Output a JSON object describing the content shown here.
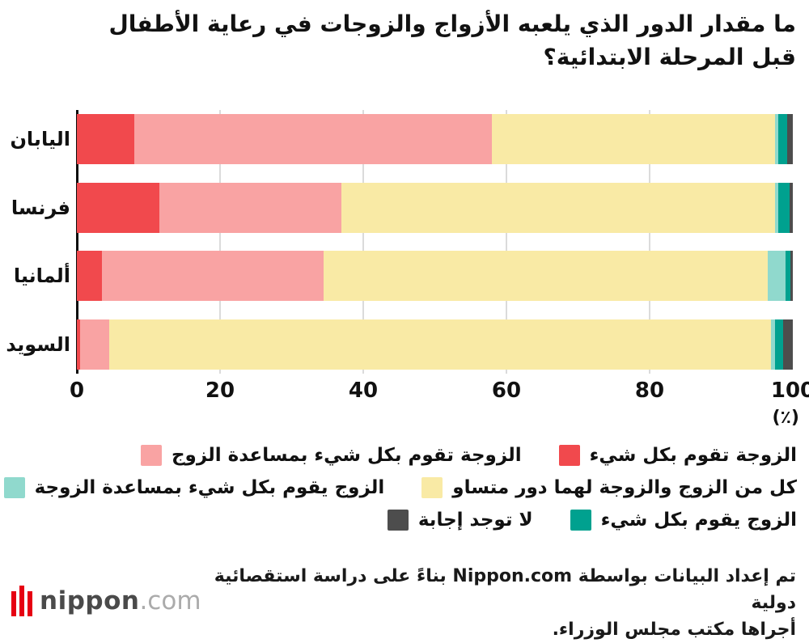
{
  "title": {
    "line1": "ما مقدار الدور الذي يلعبه الأزواج والزوجات في رعاية الأطفال",
    "line2": "قبل المرحلة الابتدائية؟"
  },
  "chart_data": {
    "type": "bar",
    "orientation": "horizontal",
    "stacked": true,
    "title": "ما مقدار الدور الذي يلعبه الأزواج والزوجات في رعاية الأطفال قبل المرحلة الابتدائية؟",
    "categories": [
      "اليابان",
      "فرنسا",
      "ألمانيا",
      "السويد"
    ],
    "series": [
      {
        "name": "الزوجة تقوم بكل شيء",
        "color": "#f1494d",
        "values": [
          8,
          11.5,
          3.5,
          0.5
        ]
      },
      {
        "name": "الزوجة تقوم بكل شيء بمساعدة الزوج",
        "color": "#f9a3a3",
        "values": [
          50,
          25.5,
          31,
          4
        ]
      },
      {
        "name": "كل من الزوج والزوجة لهما دور متساو",
        "color": "#f9eaa5",
        "values": [
          39.5,
          60.5,
          62,
          92.5
        ]
      },
      {
        "name": "الزوج يقوم بكل شيء بمساعدة الزوجة",
        "color": "#90d9cd",
        "values": [
          0.5,
          0.5,
          2.5,
          0.5
        ]
      },
      {
        "name": "الزوج يقوم بكل شيء",
        "color": "#00a18f",
        "values": [
          1.2,
          1.5,
          0.7,
          1.2
        ]
      },
      {
        "name": "لا توجد إجابة",
        "color": "#4d4d4d",
        "values": [
          0.8,
          0.5,
          0.3,
          1.3
        ]
      }
    ],
    "xlim": [
      0,
      100
    ],
    "x_ticks": [
      0,
      20,
      40,
      60,
      80,
      100
    ],
    "x_unit": "(٪)",
    "grid": true,
    "legend_position": "bottom-right",
    "axis_color": "#0d0d0d",
    "gridline_color": "#dbdbdb"
  },
  "footer": {
    "source_line1": "تم إعداد البيانات بواسطة Nippon.com بناءً على دراسة استقصائية دولية",
    "source_line2": "أجراها مكتب مجلس الوزراء."
  },
  "logo": {
    "name": "nippon",
    "tld": ".com",
    "brand_color": "#e60012"
  }
}
